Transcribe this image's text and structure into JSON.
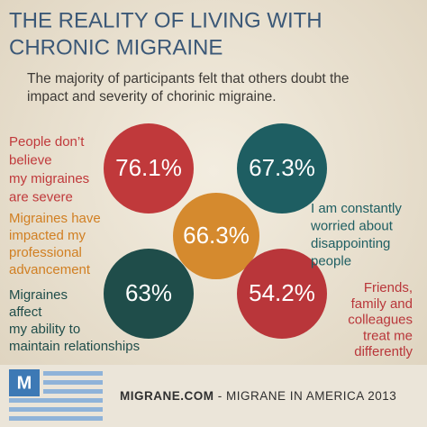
{
  "header": {
    "title_lines": [
      "THE REALITY OF LIVING WITH",
      "CHRONIC MIGRAINE"
    ],
    "subtitle_lines": [
      "The majority of participants felt that others doubt the",
      "impact and severity of chorinic migraine."
    ]
  },
  "items": [
    {
      "value": "76.1%",
      "label_lines": [
        "People don’t",
        "believe",
        "my migraines",
        "are severe"
      ]
    },
    {
      "value": "67.3%",
      "label_lines": [
        "I am constantly",
        "worried about",
        "disappointing",
        "people"
      ]
    },
    {
      "value": "66.3%",
      "label_lines": [
        "Migraines have",
        "impacted my",
        "professional",
        "advancement"
      ]
    },
    {
      "value": "63%",
      "label_lines": [
        "Migraines",
        "affect",
        "my ability to",
        "maintain relationships"
      ]
    },
    {
      "value": "54.2%",
      "label_lines": [
        "Friends,",
        "family and",
        "colleagues",
        "treat me",
        "differently"
      ]
    }
  ],
  "footer": {
    "logo_letter": "M",
    "site": "MIGRANE.COM",
    "caption": "- MIGRANE IN AMERICA 2013"
  }
}
